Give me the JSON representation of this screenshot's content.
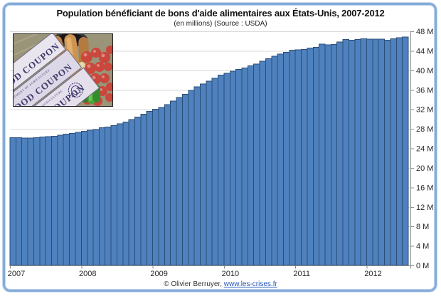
{
  "chart": {
    "title": "Population bénéficiant de bons d'aide alimentaires aux États-Unis, 2007-2012",
    "subtitle": "(en millions) (Source : USDA)"
  },
  "footer": {
    "copyright_prefix": "© Olivier Berruyer, ",
    "link_text": "www.les-crises.fr"
  },
  "photo": {
    "coupon_text": "FOOD COUPON",
    "coupon_small_text": "DEPARTMENT OF AGRICULTURE"
  },
  "colors": {
    "bar_fill": "#4E81BD",
    "bar_border": "#2B4E79",
    "gridline": "#D9D9D9",
    "axis_line": "#8C8C8C",
    "tick_label": "#262626",
    "frame_border": "#84ABD8",
    "link_blue": "#2255BB"
  },
  "chart_data": {
    "type": "bar",
    "title": "Population bénéficiant de bons d'aide alimentaires aux États-Unis, 2007-2012",
    "unit": "millions de personnes",
    "source": "USDA",
    "frequency": "monthly",
    "x_start": "2007-01",
    "x_end": "2012-07",
    "x_year_labels": [
      "2007",
      "2008",
      "2009",
      "2010",
      "2011",
      "2012"
    ],
    "y_ticks_top_to_bottom": [
      "48 M",
      "44 M",
      "40 M",
      "36 M",
      "32 M",
      "28 M",
      "24 M",
      "20 M",
      "16 M",
      "12 M",
      "8 M",
      "4 M",
      "0 M"
    ],
    "ylim": [
      0,
      48
    ],
    "y_tick_step": 4,
    "grid": "horizontal",
    "legend": "none",
    "x": [
      "2007-01",
      "2007-02",
      "2007-03",
      "2007-04",
      "2007-05",
      "2007-06",
      "2007-07",
      "2007-08",
      "2007-09",
      "2007-10",
      "2007-11",
      "2007-12",
      "2008-01",
      "2008-02",
      "2008-03",
      "2008-04",
      "2008-05",
      "2008-06",
      "2008-07",
      "2008-08",
      "2008-09",
      "2008-10",
      "2008-11",
      "2008-12",
      "2009-01",
      "2009-02",
      "2009-03",
      "2009-04",
      "2009-05",
      "2009-06",
      "2009-07",
      "2009-08",
      "2009-09",
      "2009-10",
      "2009-11",
      "2009-12",
      "2010-01",
      "2010-02",
      "2010-03",
      "2010-04",
      "2010-05",
      "2010-06",
      "2010-07",
      "2010-08",
      "2010-09",
      "2010-10",
      "2010-11",
      "2010-12",
      "2011-01",
      "2011-02",
      "2011-03",
      "2011-04",
      "2011-05",
      "2011-06",
      "2011-07",
      "2011-08",
      "2011-09",
      "2011-10",
      "2011-11",
      "2011-12",
      "2012-01",
      "2012-02",
      "2012-03",
      "2012-04",
      "2012-05",
      "2012-06",
      "2012-07"
    ],
    "values": [
      26.2,
      26.2,
      26.1,
      26.1,
      26.2,
      26.3,
      26.4,
      26.5,
      26.7,
      26.9,
      27.1,
      27.3,
      27.5,
      27.7,
      27.9,
      28.2,
      28.4,
      28.7,
      29.0,
      29.4,
      29.9,
      30.4,
      31.0,
      31.6,
      32.0,
      32.4,
      33.0,
      33.7,
      34.4,
      35.1,
      35.9,
      36.6,
      37.2,
      37.8,
      38.4,
      39.0,
      39.4,
      39.8,
      40.2,
      40.5,
      40.9,
      41.3,
      41.9,
      42.4,
      42.9,
      43.3,
      43.7,
      44.1,
      44.2,
      44.3,
      44.6,
      44.7,
      45.4,
      45.2,
      45.3,
      45.8,
      46.3,
      46.2,
      46.3,
      46.5,
      46.4,
      46.4,
      46.4,
      46.2,
      46.5,
      46.7,
      46.8
    ]
  }
}
